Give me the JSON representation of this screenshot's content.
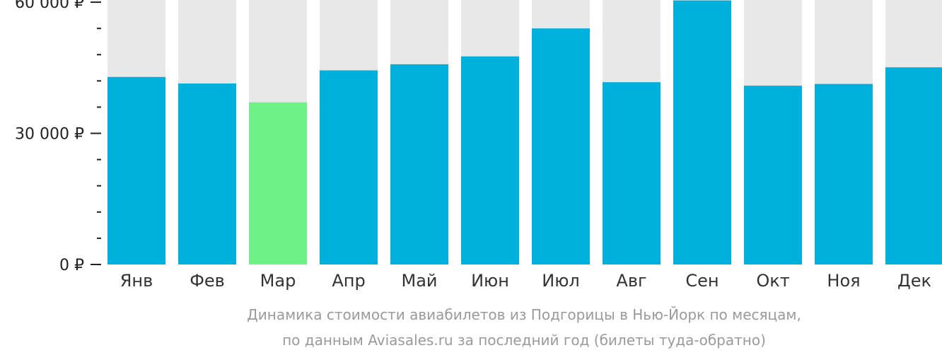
{
  "chart_data": {
    "type": "bar",
    "categories": [
      "Янв",
      "Фев",
      "Мар",
      "Апр",
      "Май",
      "Июн",
      "Июл",
      "Авг",
      "Сен",
      "Окт",
      "Ноя",
      "Дек"
    ],
    "values": [
      42900,
      41400,
      37100,
      44400,
      45800,
      47600,
      54000,
      41700,
      60400,
      40900,
      41300,
      45100
    ],
    "ylim": [
      0,
      60500
    ],
    "y_ticks": [
      {
        "value": 0,
        "label": "0 ₽"
      },
      {
        "value": 30000,
        "label": "30 000 ₽"
      },
      {
        "value": 60000,
        "label": "60 000 ₽"
      }
    ],
    "minor_tick_step": 6000,
    "highlight_index": 2,
    "title": "",
    "xlabel": "",
    "ylabel": "",
    "grid": false,
    "background_bars": true
  },
  "caption": {
    "line1": "Динамика стоимости авиабилетов из Подгорицы в Нью-Йорк по месяцам,",
    "line2": "по данным Aviasales.ru за последний год (билеты туда-обратно)"
  },
  "colors": {
    "bar": "#00b0dc",
    "bar_highlight": "#6ef287",
    "bar_background": "#e8e8e8",
    "axis": "#222222",
    "caption": "#9a9a9a"
  }
}
